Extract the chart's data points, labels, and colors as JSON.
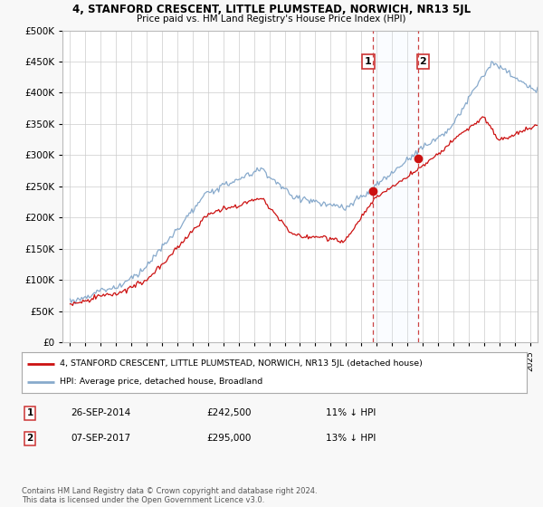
{
  "title": "4, STANFORD CRESCENT, LITTLE PLUMSTEAD, NORWICH, NR13 5JL",
  "subtitle": "Price paid vs. HM Land Registry's House Price Index (HPI)",
  "legend_label_red": "4, STANFORD CRESCENT, LITTLE PLUMSTEAD, NORWICH, NR13 5JL (detached house)",
  "legend_label_blue": "HPI: Average price, detached house, Broadland",
  "footer": "Contains HM Land Registry data © Crown copyright and database right 2024.\nThis data is licensed under the Open Government Licence v3.0.",
  "table": [
    {
      "num": "1",
      "date": "26-SEP-2014",
      "price": "£242,500",
      "hpi": "11% ↓ HPI"
    },
    {
      "num": "2",
      "date": "07-SEP-2017",
      "price": "£295,000",
      "hpi": "13% ↓ HPI"
    }
  ],
  "sale1_x": 2014.74,
  "sale1_y": 242500,
  "sale2_x": 2017.69,
  "sale2_y": 295000,
  "ylim": [
    0,
    500000
  ],
  "xlim_start": 1994.5,
  "xlim_end": 2025.5,
  "yticks": [
    0,
    50000,
    100000,
    150000,
    200000,
    250000,
    300000,
    350000,
    400000,
    450000,
    500000
  ],
  "background_color": "#f8f8f8",
  "plot_bg_color": "#ffffff",
  "red_color": "#cc1111",
  "blue_color": "#88aacc",
  "blue_fill_color": "#ddeeff",
  "grid_color": "#cccccc",
  "vline_color": "#cc4444"
}
